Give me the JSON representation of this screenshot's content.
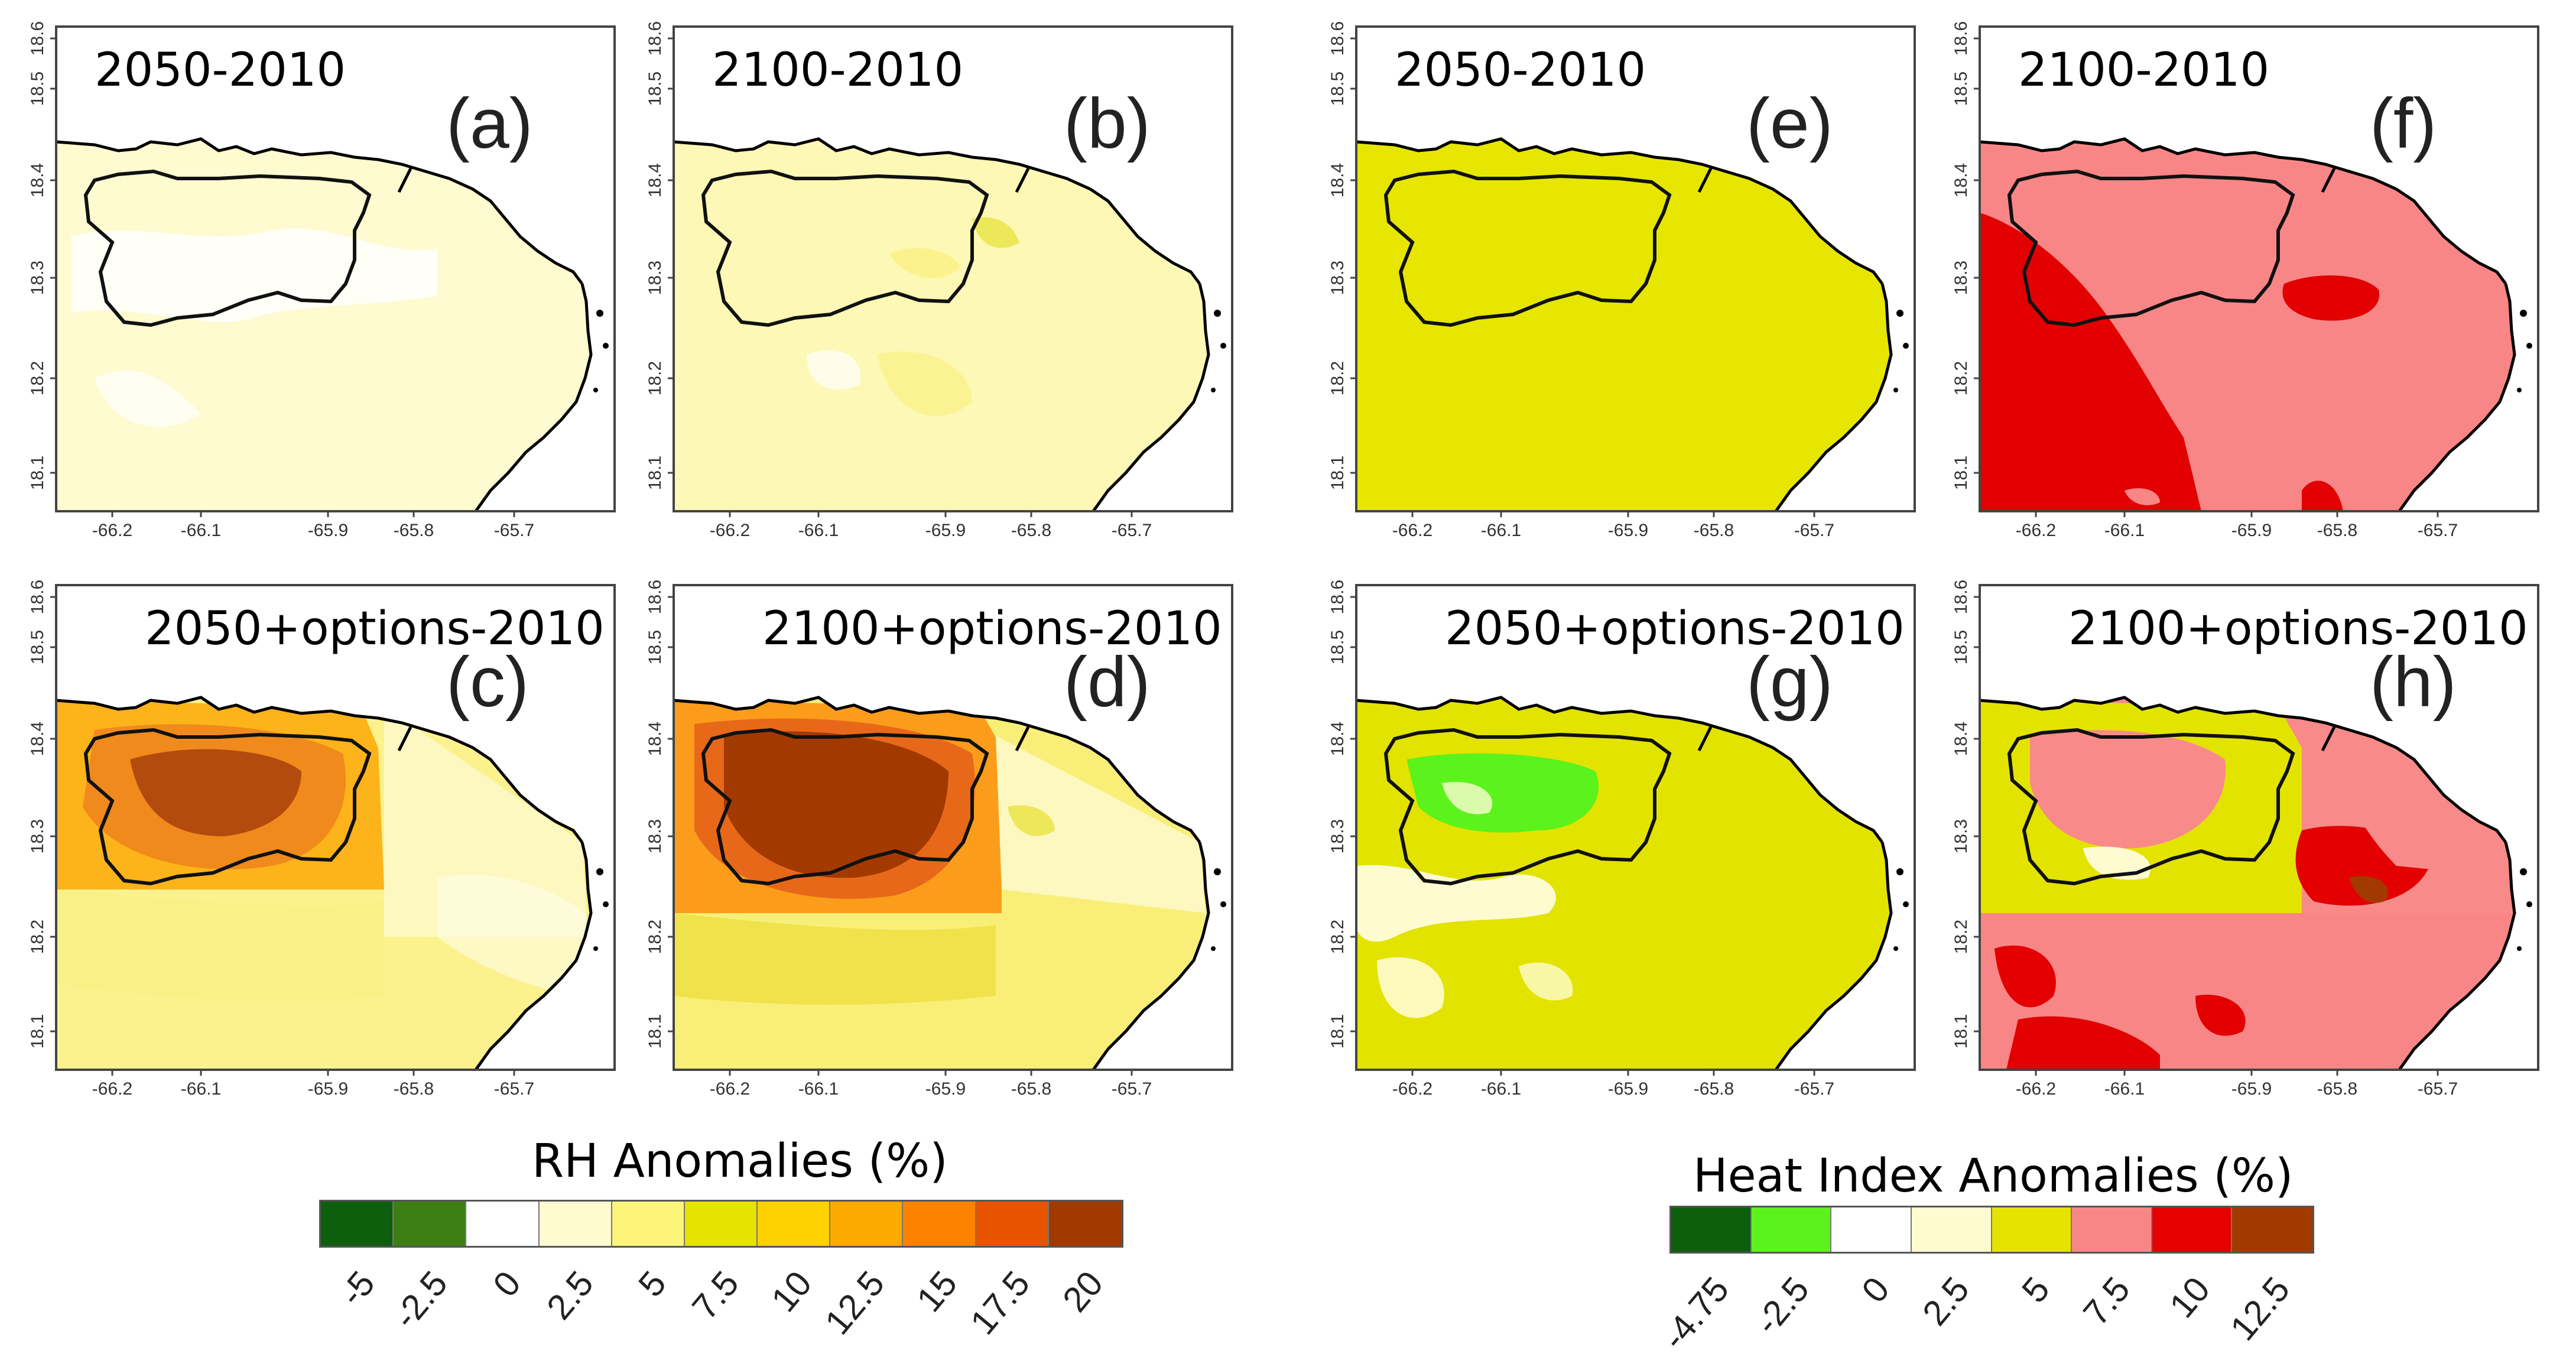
{
  "lon_ticks": [
    "-66.2",
    "-66.1",
    "-65.9",
    "-65.8",
    "-65.7"
  ],
  "lat_ticks": [
    "18.1",
    "18.2",
    "18.3",
    "18.4",
    "18.5",
    "18.6"
  ],
  "panels": [
    {
      "id": "a",
      "title": "2050-2010",
      "label": "(a)",
      "fill": "#fdfbcf",
      "scenario": "rh-2050"
    },
    {
      "id": "b",
      "title": "2100-2010",
      "label": "(b)",
      "fill": "#fdf8b5",
      "scenario": "rh-2100"
    },
    {
      "id": "c",
      "title": "2050+options-2010",
      "label": "(c)",
      "fill": "#fbf28e",
      "scenario": "rh-2050-opt"
    },
    {
      "id": "d",
      "title": "2100+options-2010",
      "label": "(d)",
      "fill": "#f9ef78",
      "scenario": "rh-2100-opt"
    },
    {
      "id": "e",
      "title": "2050-2010",
      "label": "(e)",
      "fill": "#e6e600",
      "scenario": "hi-2050"
    },
    {
      "id": "f",
      "title": "2100-2010",
      "label": "(f)",
      "fill": "#f98686",
      "scenario": "hi-2100"
    },
    {
      "id": "g",
      "title": "2050+options-2010",
      "label": "(g)",
      "fill": "#e3e300",
      "scenario": "hi-2050-opt"
    },
    {
      "id": "h",
      "title": "2100+options-2010",
      "label": "(h)",
      "fill": "#f98a8a",
      "scenario": "hi-2100-opt"
    }
  ],
  "legend_rh": {
    "title": "RH Anomalies (%)",
    "colors": [
      "#0d5e0d",
      "#3b7f15",
      "#ffffff",
      "#fdfbcf",
      "#fdf47a",
      "#e6e300",
      "#fed100",
      "#fda900",
      "#fc8200",
      "#e85300",
      "#a23a00"
    ],
    "labels": [
      "-5",
      "-2.5",
      "0",
      "2.5",
      "5",
      "7.5",
      "10",
      "12.5",
      "15",
      "17.5",
      "20"
    ]
  },
  "legend_hi": {
    "title": "Heat Index Anomalies (%)",
    "colors": [
      "#0d5e0d",
      "#5cf21c",
      "#ffffff",
      "#fdfbcf",
      "#e6e300",
      "#f98686",
      "#e60000",
      "#a23a00"
    ],
    "labels": [
      "-4.75",
      "-2.5",
      "0",
      "2.5",
      "5",
      "7.5",
      "10",
      "12.5"
    ]
  }
}
